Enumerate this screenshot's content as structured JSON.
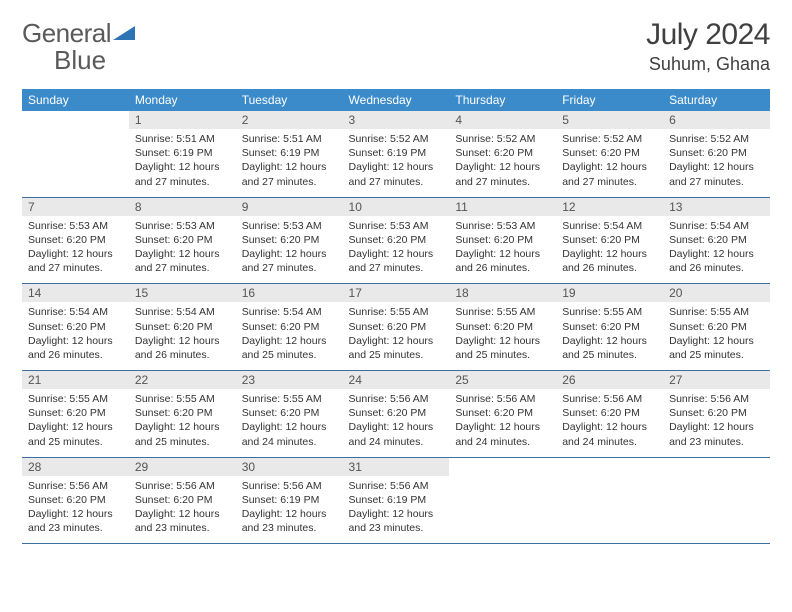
{
  "brand": {
    "part1": "General",
    "part2": "Blue"
  },
  "colors": {
    "header_bg": "#3b8bca",
    "header_text": "#ffffff",
    "daynum_bg": "#e9e9e9",
    "row_divider": "#3b6fa0",
    "brand_tri": "#2e74b5",
    "body_text": "#333333"
  },
  "title": "July 2024",
  "location": "Suhum, Ghana",
  "weekdays": [
    "Sunday",
    "Monday",
    "Tuesday",
    "Wednesday",
    "Thursday",
    "Friday",
    "Saturday"
  ],
  "grid": [
    [
      {
        "num": "",
        "sun": "",
        "set": "",
        "day": ""
      },
      {
        "num": "1",
        "sun": "Sunrise: 5:51 AM",
        "set": "Sunset: 6:19 PM",
        "day": "Daylight: 12 hours and 27 minutes."
      },
      {
        "num": "2",
        "sun": "Sunrise: 5:51 AM",
        "set": "Sunset: 6:19 PM",
        "day": "Daylight: 12 hours and 27 minutes."
      },
      {
        "num": "3",
        "sun": "Sunrise: 5:52 AM",
        "set": "Sunset: 6:19 PM",
        "day": "Daylight: 12 hours and 27 minutes."
      },
      {
        "num": "4",
        "sun": "Sunrise: 5:52 AM",
        "set": "Sunset: 6:20 PM",
        "day": "Daylight: 12 hours and 27 minutes."
      },
      {
        "num": "5",
        "sun": "Sunrise: 5:52 AM",
        "set": "Sunset: 6:20 PM",
        "day": "Daylight: 12 hours and 27 minutes."
      },
      {
        "num": "6",
        "sun": "Sunrise: 5:52 AM",
        "set": "Sunset: 6:20 PM",
        "day": "Daylight: 12 hours and 27 minutes."
      }
    ],
    [
      {
        "num": "7",
        "sun": "Sunrise: 5:53 AM",
        "set": "Sunset: 6:20 PM",
        "day": "Daylight: 12 hours and 27 minutes."
      },
      {
        "num": "8",
        "sun": "Sunrise: 5:53 AM",
        "set": "Sunset: 6:20 PM",
        "day": "Daylight: 12 hours and 27 minutes."
      },
      {
        "num": "9",
        "sun": "Sunrise: 5:53 AM",
        "set": "Sunset: 6:20 PM",
        "day": "Daylight: 12 hours and 27 minutes."
      },
      {
        "num": "10",
        "sun": "Sunrise: 5:53 AM",
        "set": "Sunset: 6:20 PM",
        "day": "Daylight: 12 hours and 27 minutes."
      },
      {
        "num": "11",
        "sun": "Sunrise: 5:53 AM",
        "set": "Sunset: 6:20 PM",
        "day": "Daylight: 12 hours and 26 minutes."
      },
      {
        "num": "12",
        "sun": "Sunrise: 5:54 AM",
        "set": "Sunset: 6:20 PM",
        "day": "Daylight: 12 hours and 26 minutes."
      },
      {
        "num": "13",
        "sun": "Sunrise: 5:54 AM",
        "set": "Sunset: 6:20 PM",
        "day": "Daylight: 12 hours and 26 minutes."
      }
    ],
    [
      {
        "num": "14",
        "sun": "Sunrise: 5:54 AM",
        "set": "Sunset: 6:20 PM",
        "day": "Daylight: 12 hours and 26 minutes."
      },
      {
        "num": "15",
        "sun": "Sunrise: 5:54 AM",
        "set": "Sunset: 6:20 PM",
        "day": "Daylight: 12 hours and 26 minutes."
      },
      {
        "num": "16",
        "sun": "Sunrise: 5:54 AM",
        "set": "Sunset: 6:20 PM",
        "day": "Daylight: 12 hours and 25 minutes."
      },
      {
        "num": "17",
        "sun": "Sunrise: 5:55 AM",
        "set": "Sunset: 6:20 PM",
        "day": "Daylight: 12 hours and 25 minutes."
      },
      {
        "num": "18",
        "sun": "Sunrise: 5:55 AM",
        "set": "Sunset: 6:20 PM",
        "day": "Daylight: 12 hours and 25 minutes."
      },
      {
        "num": "19",
        "sun": "Sunrise: 5:55 AM",
        "set": "Sunset: 6:20 PM",
        "day": "Daylight: 12 hours and 25 minutes."
      },
      {
        "num": "20",
        "sun": "Sunrise: 5:55 AM",
        "set": "Sunset: 6:20 PM",
        "day": "Daylight: 12 hours and 25 minutes."
      }
    ],
    [
      {
        "num": "21",
        "sun": "Sunrise: 5:55 AM",
        "set": "Sunset: 6:20 PM",
        "day": "Daylight: 12 hours and 25 minutes."
      },
      {
        "num": "22",
        "sun": "Sunrise: 5:55 AM",
        "set": "Sunset: 6:20 PM",
        "day": "Daylight: 12 hours and 25 minutes."
      },
      {
        "num": "23",
        "sun": "Sunrise: 5:55 AM",
        "set": "Sunset: 6:20 PM",
        "day": "Daylight: 12 hours and 24 minutes."
      },
      {
        "num": "24",
        "sun": "Sunrise: 5:56 AM",
        "set": "Sunset: 6:20 PM",
        "day": "Daylight: 12 hours and 24 minutes."
      },
      {
        "num": "25",
        "sun": "Sunrise: 5:56 AM",
        "set": "Sunset: 6:20 PM",
        "day": "Daylight: 12 hours and 24 minutes."
      },
      {
        "num": "26",
        "sun": "Sunrise: 5:56 AM",
        "set": "Sunset: 6:20 PM",
        "day": "Daylight: 12 hours and 24 minutes."
      },
      {
        "num": "27",
        "sun": "Sunrise: 5:56 AM",
        "set": "Sunset: 6:20 PM",
        "day": "Daylight: 12 hours and 23 minutes."
      }
    ],
    [
      {
        "num": "28",
        "sun": "Sunrise: 5:56 AM",
        "set": "Sunset: 6:20 PM",
        "day": "Daylight: 12 hours and 23 minutes."
      },
      {
        "num": "29",
        "sun": "Sunrise: 5:56 AM",
        "set": "Sunset: 6:20 PM",
        "day": "Daylight: 12 hours and 23 minutes."
      },
      {
        "num": "30",
        "sun": "Sunrise: 5:56 AM",
        "set": "Sunset: 6:19 PM",
        "day": "Daylight: 12 hours and 23 minutes."
      },
      {
        "num": "31",
        "sun": "Sunrise: 5:56 AM",
        "set": "Sunset: 6:19 PM",
        "day": "Daylight: 12 hours and 23 minutes."
      },
      {
        "num": "",
        "sun": "",
        "set": "",
        "day": ""
      },
      {
        "num": "",
        "sun": "",
        "set": "",
        "day": ""
      },
      {
        "num": "",
        "sun": "",
        "set": "",
        "day": ""
      }
    ]
  ]
}
